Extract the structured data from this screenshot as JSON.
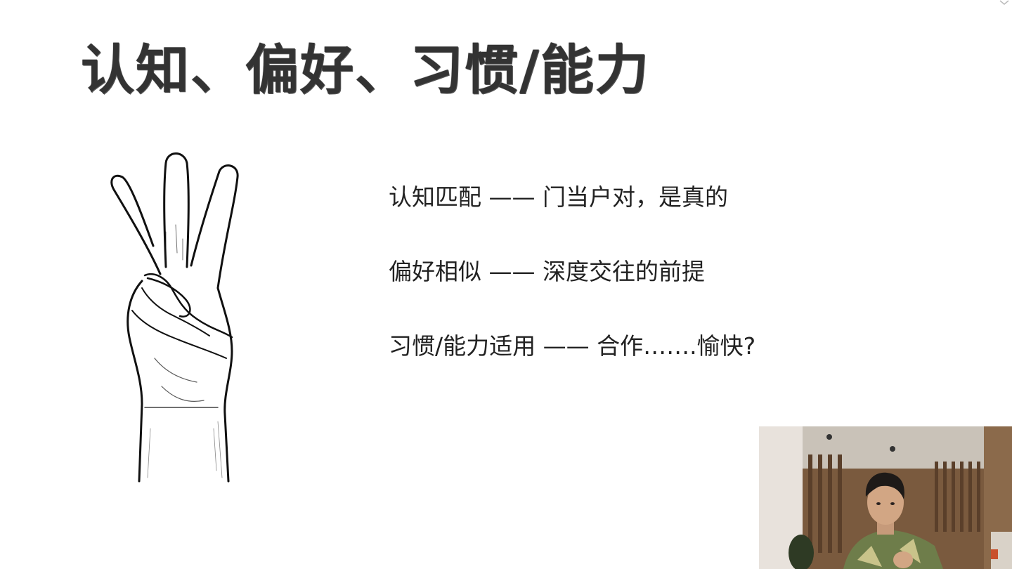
{
  "slide": {
    "title": "认知、偏好、习惯/能力",
    "points": [
      "认知匹配 —— 门当户对，是真的",
      "偏好相似 —— 深度交往的前提",
      "习惯/能力适用 —— 合作…….愉快?"
    ],
    "illustration": "three-fingers-hand-icon"
  },
  "webcam": {
    "subject": "presenter-video"
  },
  "colors": {
    "background": "#ffffff",
    "title": "#333333",
    "text": "#222222"
  }
}
